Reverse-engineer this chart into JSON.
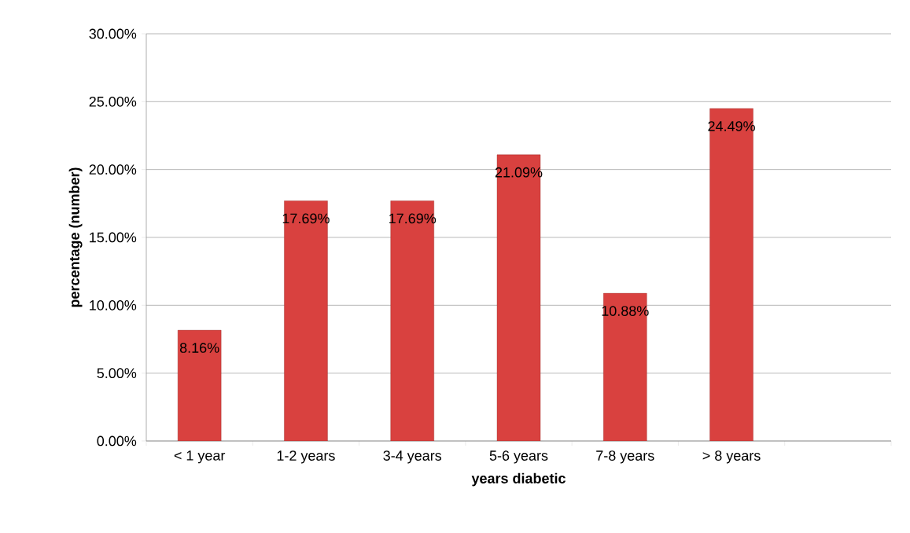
{
  "chart_data": {
    "type": "bar",
    "xlabel": "years diabetic",
    "ylabel": "percentage (number)",
    "categories": [
      "< 1 year",
      "1-2 years",
      "3-4 years",
      "5-6 years",
      "7-8 years",
      "> 8 years",
      null
    ],
    "values": [
      8.16,
      17.69,
      17.69,
      21.09,
      10.88,
      24.49,
      null
    ],
    "value_labels": [
      "8.16%",
      "17.69%",
      "17.69%",
      "21.09%",
      "10.88%",
      "24.49%",
      null
    ],
    "color": "#d9413f",
    "ylim": [
      0,
      30
    ],
    "yticks": [
      {
        "value": 0,
        "label": "0.00%"
      },
      {
        "value": 5,
        "label": "5.00%"
      },
      {
        "value": 10,
        "label": "10.00%"
      },
      {
        "value": 15,
        "label": "15.00%"
      },
      {
        "value": 20,
        "label": "20.00%"
      },
      {
        "value": 25,
        "label": "25.00%"
      },
      {
        "value": 30,
        "label": "30.00%"
      }
    ],
    "grid": "y"
  }
}
